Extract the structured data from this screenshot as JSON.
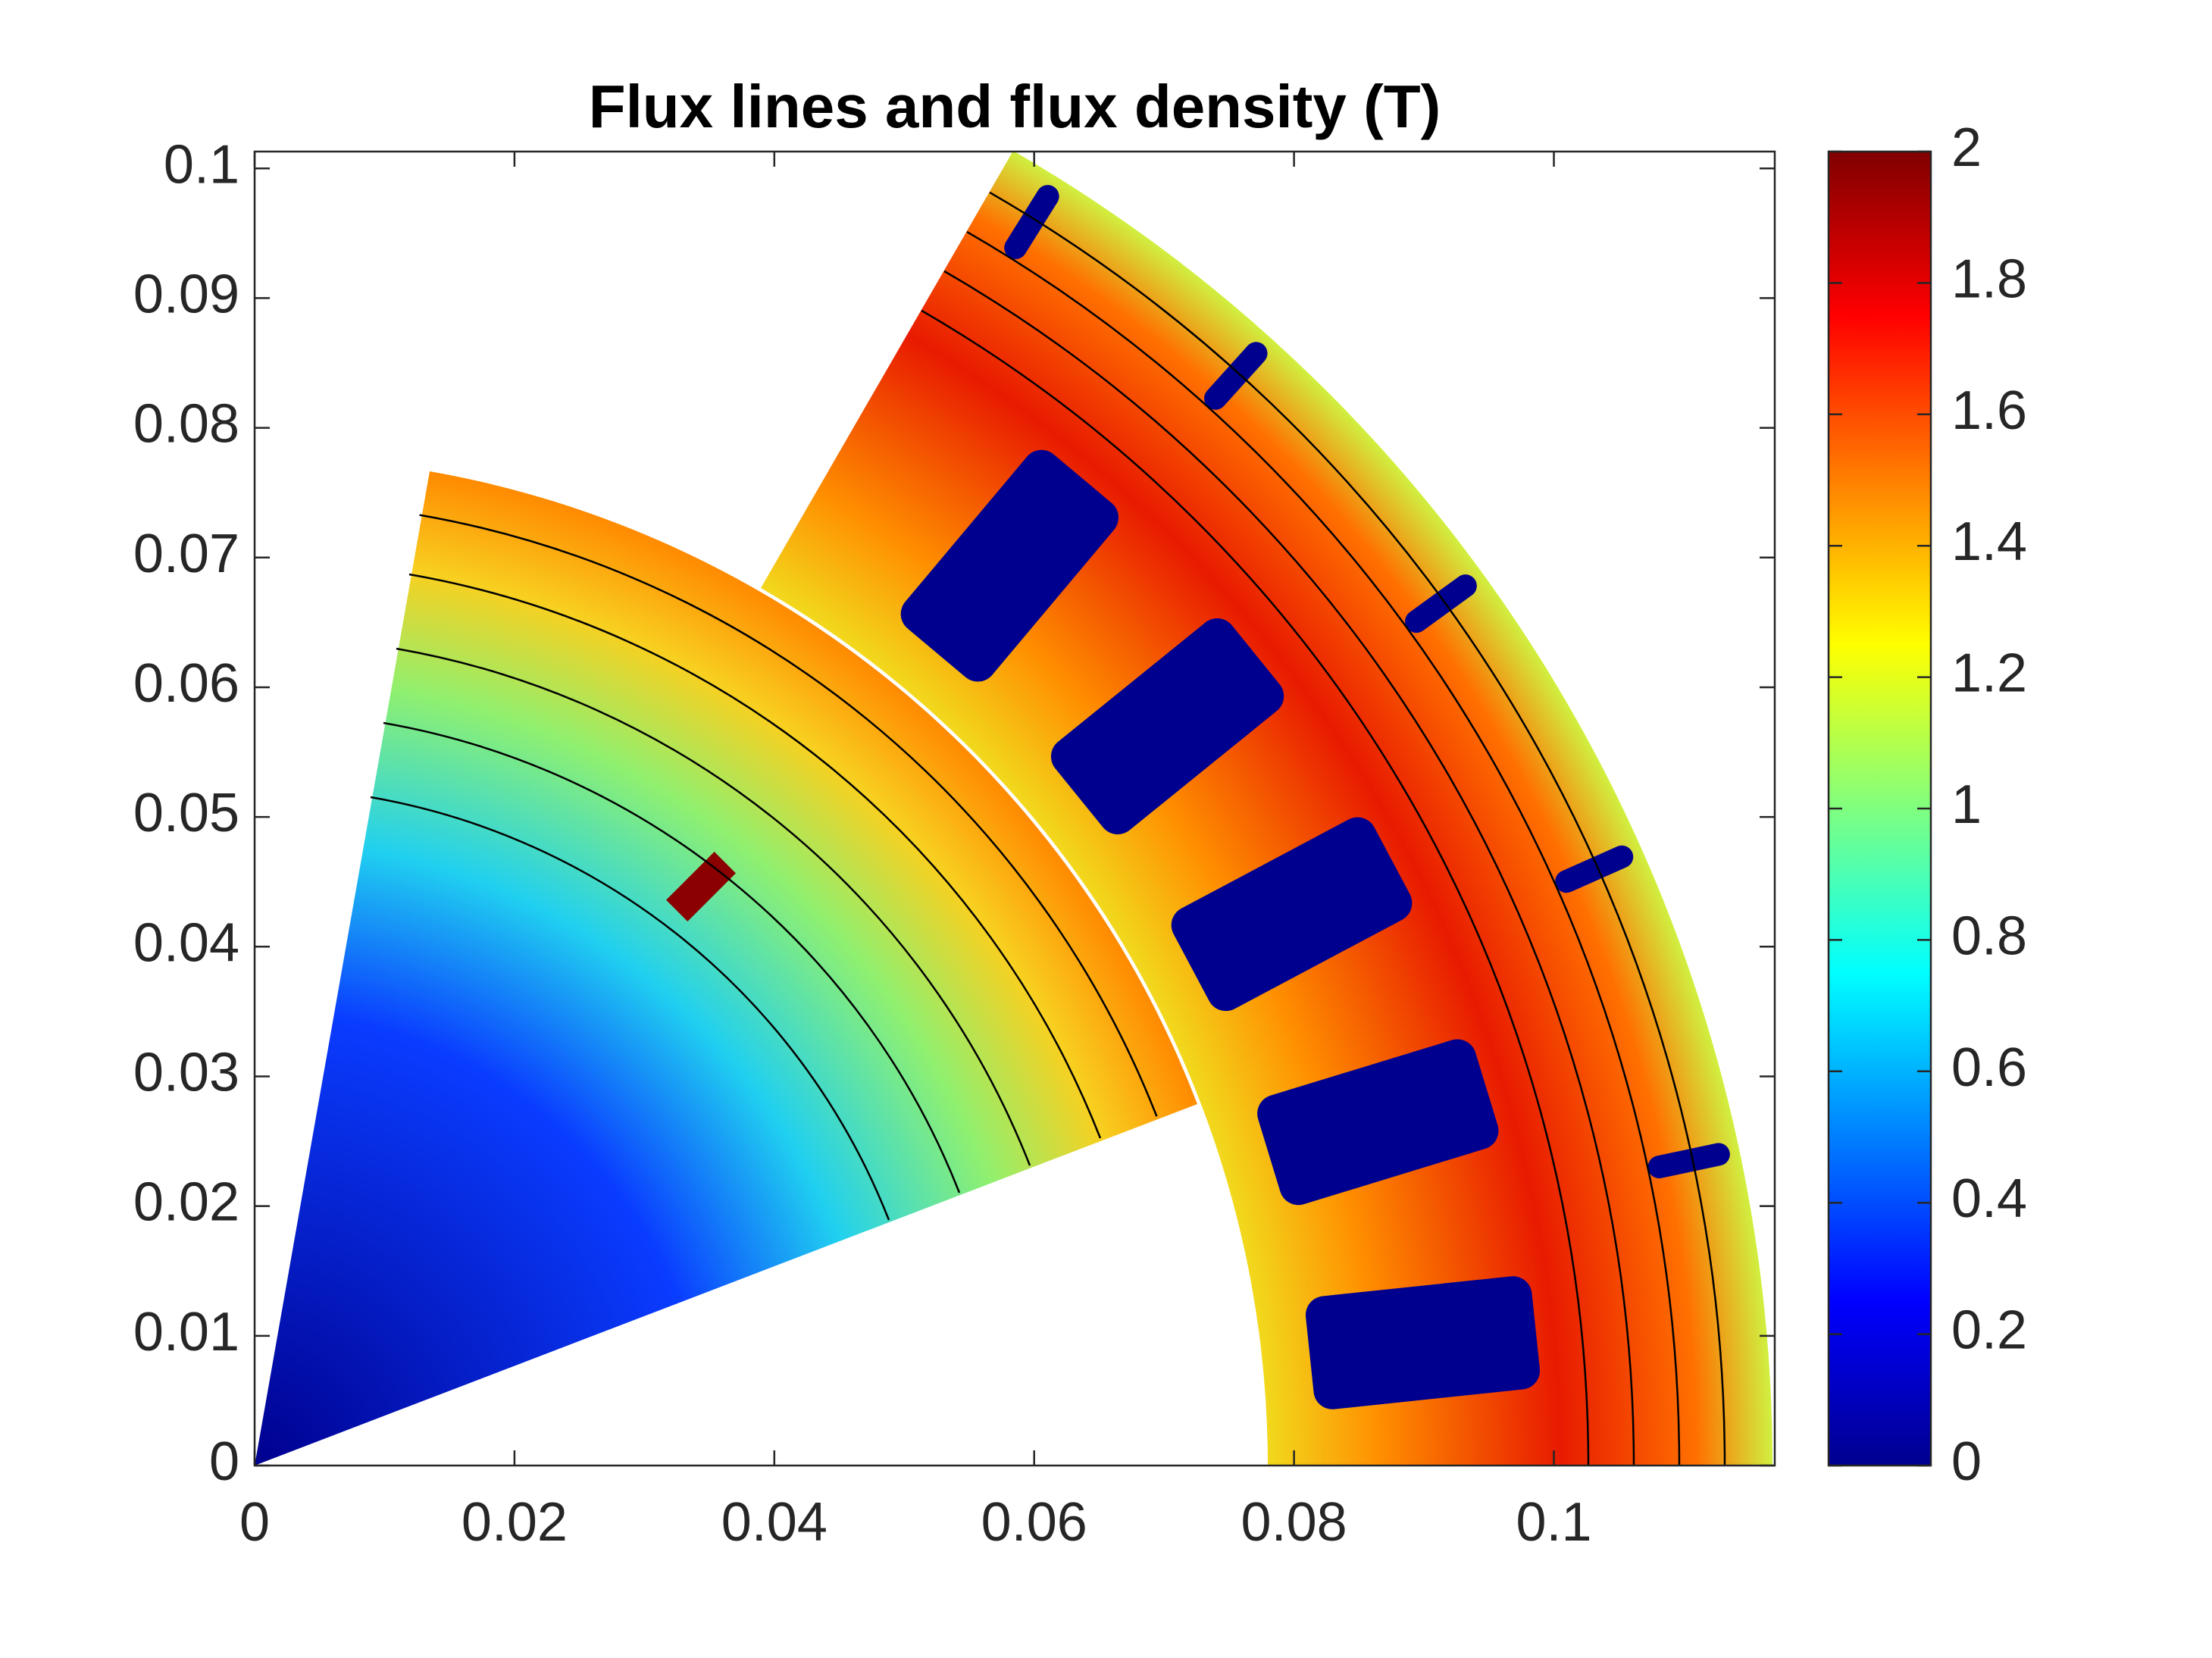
{
  "chart_data": {
    "type": "heatmap",
    "title": "Flux lines and flux density (T)",
    "xlim": [
      0,
      0.117
    ],
    "ylim": [
      0,
      0.1013
    ],
    "xticks": [
      0,
      0.02,
      0.04,
      0.06,
      0.08,
      0.1
    ],
    "yticks": [
      0,
      0.01,
      0.02,
      0.03,
      0.04,
      0.05,
      0.06,
      0.07,
      0.08,
      0.09,
      0.1
    ],
    "colormap": "jet",
    "clim": [
      0,
      2
    ],
    "cticks": [
      0,
      0.2,
      0.4,
      0.6,
      0.8,
      1,
      1.2,
      1.4,
      1.6,
      1.8,
      2
    ]
  }
}
